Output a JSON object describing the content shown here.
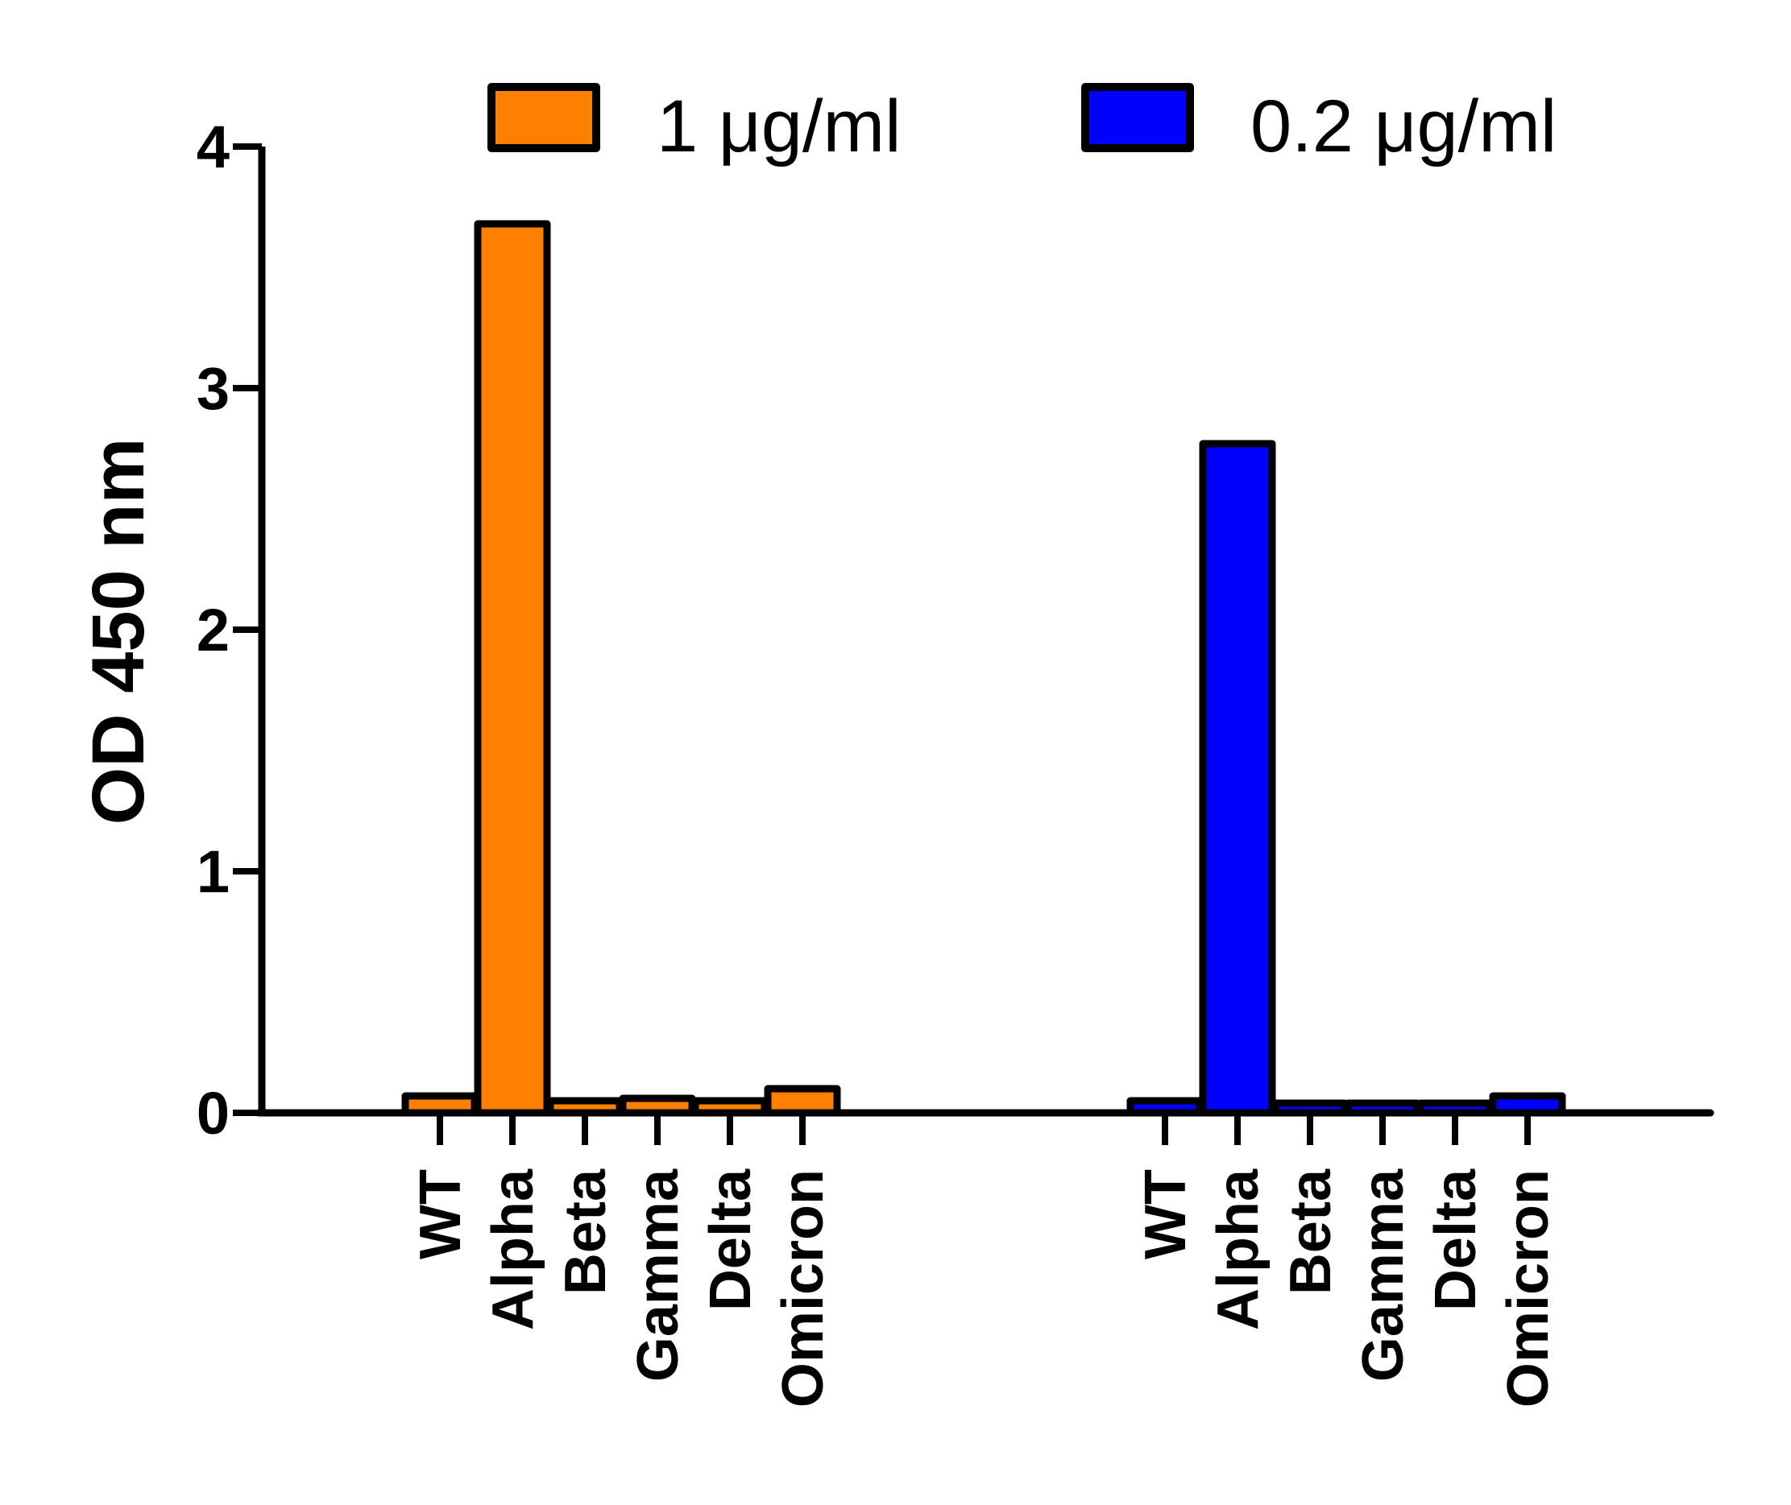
{
  "chart_data": {
    "type": "bar",
    "title": "",
    "ylabel": "OD 450 nm",
    "xlabel": "",
    "ylim": [
      0,
      4
    ],
    "yticks": [
      "0",
      "1",
      "2",
      "3",
      "4"
    ],
    "grid": false,
    "legend_placement": "top",
    "groups": [
      {
        "name": "1 μg/ml",
        "color": "#FF8000",
        "categories": [
          "WT",
          "Alpha",
          "Beta",
          "Gamma",
          "Delta",
          "Omicron"
        ],
        "values": [
          0.07,
          3.68,
          0.05,
          0.06,
          0.05,
          0.1
        ]
      },
      {
        "name": "0.2 μg/ml",
        "color": "#0000FF",
        "categories": [
          "WT",
          "Alpha",
          "Beta",
          "Gamma",
          "Delta",
          "Omicron"
        ],
        "values": [
          0.05,
          2.77,
          0.04,
          0.04,
          0.04,
          0.07
        ]
      }
    ]
  }
}
